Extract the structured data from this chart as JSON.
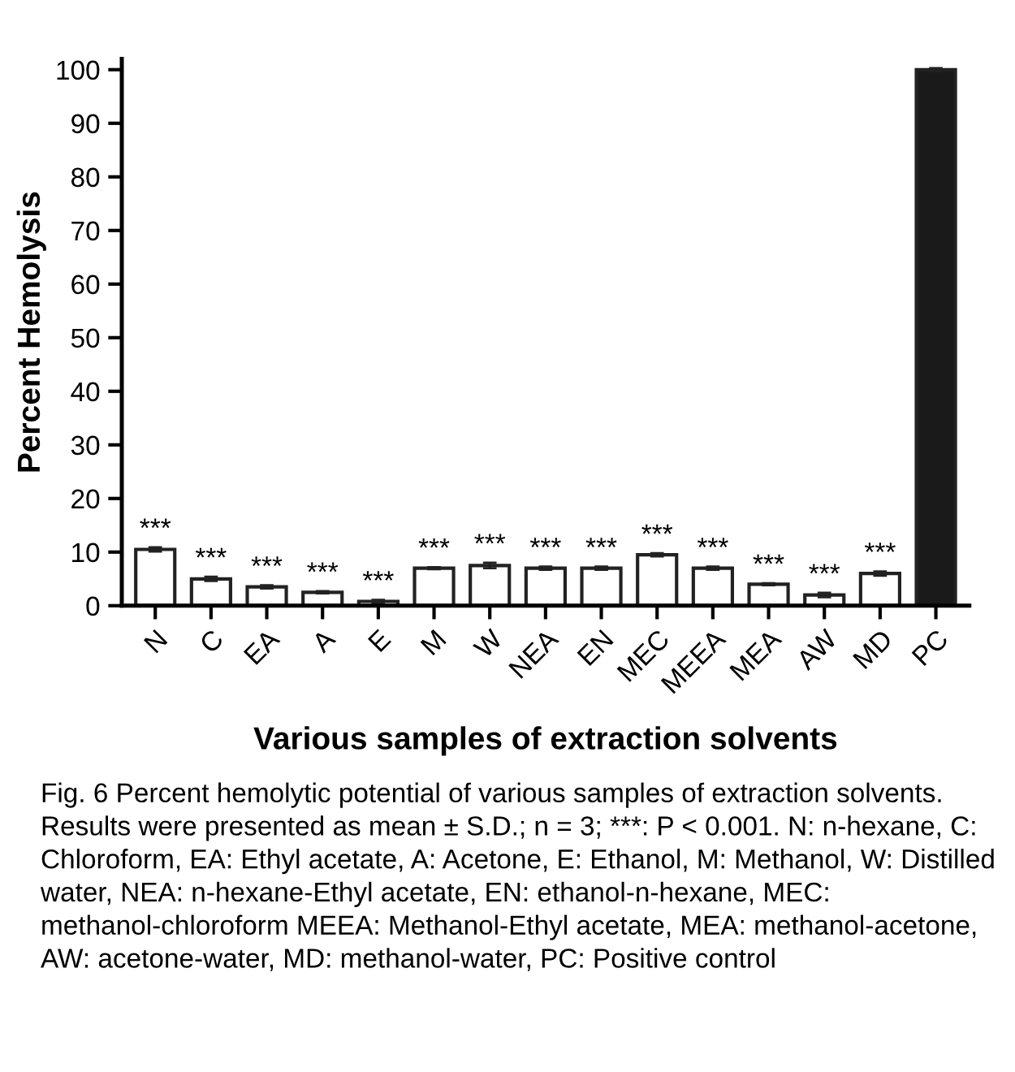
{
  "chart_data": {
    "type": "bar",
    "xlabel": "Various samples of extraction solvents",
    "ylabel": "Percent Hemolysis",
    "categories": [
      "N",
      "C",
      "EA",
      "A",
      "E",
      "M",
      "W",
      "NEA",
      "EN",
      "MEC",
      "MEEA",
      "MEA",
      "AW",
      "MD",
      "PC"
    ],
    "values": [
      10.5,
      5,
      3.5,
      2.5,
      0.8,
      7,
      7.5,
      7,
      7,
      9.5,
      7,
      4,
      2,
      6,
      100
    ],
    "errors": [
      0.4,
      0.4,
      0.3,
      0.2,
      0.3,
      0.2,
      0.5,
      0.3,
      0.3,
      0.3,
      0.3,
      0.2,
      0.4,
      0.4,
      0.3
    ],
    "colors": [
      "#ffffff",
      "#ffffff",
      "#ffffff",
      "#ffffff",
      "#ffffff",
      "#ffffff",
      "#ffffff",
      "#ffffff",
      "#ffffff",
      "#ffffff",
      "#ffffff",
      "#ffffff",
      "#ffffff",
      "#ffffff",
      "#1a1a1a"
    ],
    "ylim": [
      0,
      102
    ],
    "yticks": [
      0,
      10,
      20,
      30,
      40,
      50,
      60,
      70,
      80,
      90,
      100
    ],
    "grid": false,
    "legend": false,
    "annotations": [
      {
        "text": "***",
        "x": "N",
        "y": 10.5
      },
      {
        "text": "***",
        "x": "C",
        "y": 5
      },
      {
        "text": "***",
        "x": "EA",
        "y": 3.5
      },
      {
        "text": "***",
        "x": "A",
        "y": 2.5
      },
      {
        "text": "***",
        "x": "E",
        "y": 0.8
      },
      {
        "text": "***",
        "x": "M",
        "y": 7
      },
      {
        "text": "***",
        "x": "W",
        "y": 7.5
      },
      {
        "text": "***",
        "x": "NEA",
        "y": 7
      },
      {
        "text": "***",
        "x": "EN",
        "y": 7
      },
      {
        "text": "***",
        "x": "MEC",
        "y": 9.5
      },
      {
        "text": "***",
        "x": "MEEA",
        "y": 7
      },
      {
        "text": "***",
        "x": "MEA",
        "y": 4
      },
      {
        "text": "***",
        "x": "AW",
        "y": 2
      },
      {
        "text": "***",
        "x": "MD",
        "y": 6
      },
      "Fig. 6 Percent hemolytic potential of various samples of extraction solvents. Results were presented as mean ± S.D.; n = 3; ***: P < 0.001. N: n-hexane, C: Chloroform, EA: Ethyl acetate, A: Acetone, E: Ethanol, M: Methanol, W: Distilled water, NEA: n-hexane-Ethyl acetate, EN: ethanol-n-hexane, MEC: methanol-chloroform MEEA: Methanol-Ethyl acetate, MEA: methanol-acetone, AW: acetone-water, MD: methanol-water, PC: Positive control"
    ]
  }
}
